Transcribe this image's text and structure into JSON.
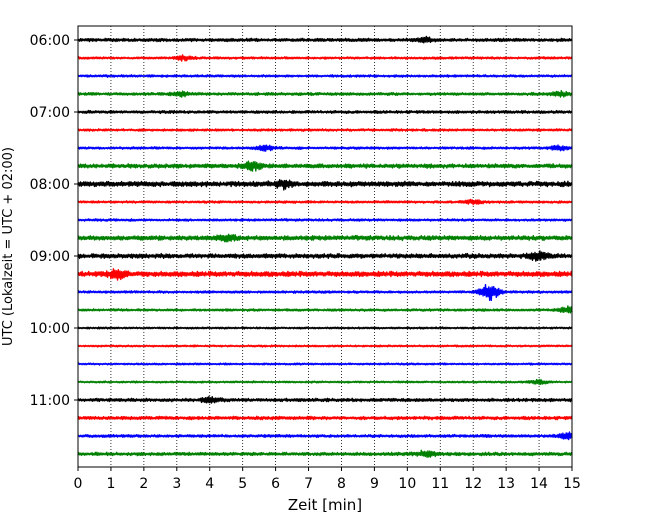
{
  "chart_data": {
    "type": "line",
    "title": "",
    "xlabel": "Zeit  [min]",
    "ylabel": "UTC (Lokalzeit = UTC + 02:00)",
    "xlim": [
      0,
      15
    ],
    "x_ticks": [
      0,
      1,
      2,
      3,
      4,
      5,
      6,
      7,
      8,
      9,
      10,
      11,
      12,
      13,
      14,
      15
    ],
    "y_ticks": [
      "06:00",
      "07:00",
      "08:00",
      "09:00",
      "10:00",
      "11:00"
    ],
    "grid": "vertical dotted",
    "legend": "none",
    "trace_colors": [
      "#000000",
      "#ff0000",
      "#0000ff",
      "#008000"
    ],
    "traces": [
      {
        "start": "06:00",
        "color": "#000000",
        "amplitude": 0.35,
        "events": [
          {
            "x": 10.5,
            "amp": 0.5
          }
        ]
      },
      {
        "start": "06:15",
        "color": "#ff0000",
        "amplitude": 0.25,
        "events": [
          {
            "x": 3.2,
            "amp": 0.45
          }
        ]
      },
      {
        "start": "06:30",
        "color": "#0000ff",
        "amplitude": 0.25,
        "events": []
      },
      {
        "start": "06:45",
        "color": "#008000",
        "amplitude": 0.3,
        "events": [
          {
            "x": 3.1,
            "amp": 0.5
          },
          {
            "x": 14.6,
            "amp": 0.5
          }
        ]
      },
      {
        "start": "07:00",
        "color": "#000000",
        "amplitude": 0.3,
        "events": []
      },
      {
        "start": "07:15",
        "color": "#ff0000",
        "amplitude": 0.25,
        "events": []
      },
      {
        "start": "07:30",
        "color": "#0000ff",
        "amplitude": 0.25,
        "events": [
          {
            "x": 5.7,
            "amp": 0.6
          },
          {
            "x": 14.6,
            "amp": 0.5
          }
        ]
      },
      {
        "start": "07:45",
        "color": "#008000",
        "amplitude": 0.45,
        "events": [
          {
            "x": 5.3,
            "amp": 0.8
          }
        ]
      },
      {
        "start": "08:00",
        "color": "#000000",
        "amplitude": 0.55,
        "events": [
          {
            "x": 6.2,
            "amp": 0.8
          }
        ]
      },
      {
        "start": "08:15",
        "color": "#ff0000",
        "amplitude": 0.25,
        "events": [
          {
            "x": 12.0,
            "amp": 0.4
          }
        ]
      },
      {
        "start": "08:30",
        "color": "#0000ff",
        "amplitude": 0.25,
        "events": []
      },
      {
        "start": "08:45",
        "color": "#008000",
        "amplitude": 0.5,
        "events": [
          {
            "x": 4.5,
            "amp": 0.7
          }
        ]
      },
      {
        "start": "09:00",
        "color": "#000000",
        "amplitude": 0.5,
        "events": [
          {
            "x": 14.0,
            "amp": 0.8
          }
        ]
      },
      {
        "start": "09:15",
        "color": "#ff0000",
        "amplitude": 0.55,
        "events": [
          {
            "x": 1.2,
            "amp": 0.9
          }
        ]
      },
      {
        "start": "09:30",
        "color": "#0000ff",
        "amplitude": 0.25,
        "events": [
          {
            "x": 12.5,
            "amp": 2.0
          }
        ]
      },
      {
        "start": "09:45",
        "color": "#008000",
        "amplitude": 0.25,
        "events": [
          {
            "x": 14.9,
            "amp": 0.7
          }
        ]
      },
      {
        "start": "10:00",
        "color": "#000000",
        "amplitude": 0.2,
        "events": []
      },
      {
        "start": "10:15",
        "color": "#ff0000",
        "amplitude": 0.2,
        "events": []
      },
      {
        "start": "10:30",
        "color": "#0000ff",
        "amplitude": 0.2,
        "events": []
      },
      {
        "start": "10:45",
        "color": "#008000",
        "amplitude": 0.2,
        "events": [
          {
            "x": 14.0,
            "amp": 0.4
          }
        ]
      },
      {
        "start": "11:00",
        "color": "#000000",
        "amplitude": 0.35,
        "events": [
          {
            "x": 4.0,
            "amp": 0.6
          }
        ]
      },
      {
        "start": "11:15",
        "color": "#ff0000",
        "amplitude": 0.35,
        "events": []
      },
      {
        "start": "11:30",
        "color": "#0000ff",
        "amplitude": 0.3,
        "events": [
          {
            "x": 14.9,
            "amp": 0.8
          }
        ]
      },
      {
        "start": "11:45",
        "color": "#008000",
        "amplitude": 0.35,
        "events": [
          {
            "x": 10.6,
            "amp": 0.7
          }
        ]
      }
    ]
  }
}
